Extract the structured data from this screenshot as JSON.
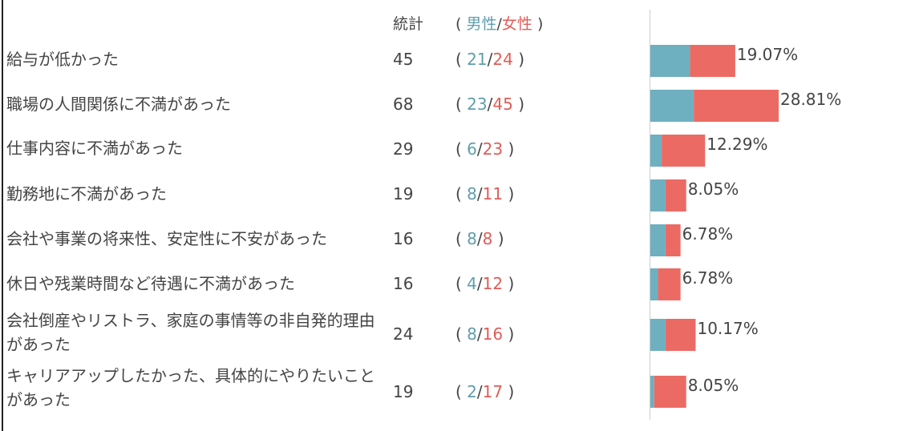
{
  "header": {
    "total_label": "統計",
    "open_paren": "(",
    "male_label": "男性",
    "separator": "/",
    "female_label": "女性",
    "close_paren": ")"
  },
  "colors": {
    "male": "#6eafc0",
    "female": "#ec6a64",
    "text": "#444444"
  },
  "chart_data": {
    "type": "bar",
    "orientation": "horizontal",
    "stacked": true,
    "categories": [
      "給与が低かった",
      "職場の人間関係に不満があった",
      "仕事内容に不満があった",
      "勤務地に不満があった",
      "会社や事業の将来性、安定性に不安があった",
      "休日や残業時間など待遇に不満があった",
      "会社倒産やリストラ、家庭の事情等の非自発的理由があった",
      "キャリアアップしたかった、具体的にやりたいことがあった"
    ],
    "totals": [
      45,
      68,
      29,
      19,
      16,
      16,
      24,
      19
    ],
    "series": [
      {
        "name": "男性",
        "values": [
          21,
          23,
          6,
          8,
          8,
          4,
          8,
          2
        ]
      },
      {
        "name": "女性",
        "values": [
          24,
          45,
          23,
          11,
          8,
          12,
          16,
          17
        ]
      }
    ],
    "percentages": [
      "19.07%",
      "28.81%",
      "12.29%",
      "8.05%",
      "6.78%",
      "6.78%",
      "10.17%",
      "8.05%"
    ]
  }
}
